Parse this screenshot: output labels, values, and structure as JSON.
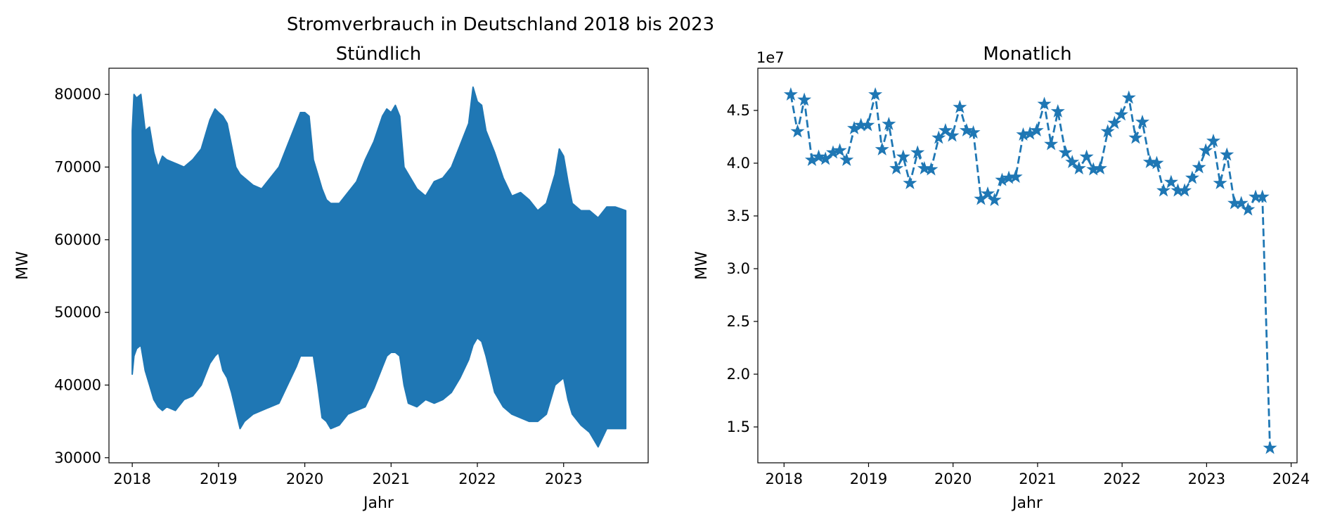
{
  "suptitle": "Stromverbrauch in Deutschland 2018 bis 2023",
  "colors": {
    "series": "#1f77b4",
    "axis": "#000000",
    "background": "#ffffff"
  },
  "chart_data": [
    {
      "type": "area",
      "title": "Stündlich",
      "xlabel": "Jahr",
      "ylabel": "MW",
      "xlim": [
        2017.73,
        2023.98
      ],
      "ylim": [
        29300,
        83600
      ],
      "xticks": [
        2018,
        2019,
        2020,
        2021,
        2022,
        2023
      ],
      "xticklabels": [
        "2018",
        "2019",
        "2020",
        "2021",
        "2022",
        "2023"
      ],
      "yticks": [
        30000,
        40000,
        50000,
        60000,
        70000,
        80000
      ],
      "yticklabels": [
        "30000",
        "40000",
        "50000",
        "60000",
        "70000",
        "80000"
      ],
      "grid": false,
      "series": [
        {
          "style": "dense hourly band (upper/lower envelope)",
          "x": [
            2018.0,
            2018.02,
            2018.05,
            2018.1,
            2018.15,
            2018.2,
            2018.25,
            2018.3,
            2018.35,
            2018.4,
            2018.5,
            2018.6,
            2018.7,
            2018.8,
            2018.9,
            2018.96,
            2019.0,
            2019.05,
            2019.1,
            2019.15,
            2019.2,
            2019.25,
            2019.3,
            2019.4,
            2019.5,
            2019.6,
            2019.7,
            2019.8,
            2019.9,
            2019.95,
            2020.0,
            2020.05,
            2020.1,
            2020.15,
            2020.2,
            2020.25,
            2020.3,
            2020.4,
            2020.5,
            2020.6,
            2020.7,
            2020.8,
            2020.9,
            2020.95,
            2021.0,
            2021.05,
            2021.1,
            2021.15,
            2021.2,
            2021.3,
            2021.4,
            2021.5,
            2021.6,
            2021.7,
            2021.8,
            2021.9,
            2021.95,
            2022.0,
            2022.05,
            2022.1,
            2022.2,
            2022.3,
            2022.4,
            2022.5,
            2022.6,
            2022.7,
            2022.8,
            2022.9,
            2022.95,
            2023.0,
            2023.05,
            2023.1,
            2023.2,
            2023.3,
            2023.4,
            2023.5,
            2023.6,
            2023.72
          ],
          "upper": [
            75000,
            80000,
            79500,
            80000,
            75000,
            75500,
            72000,
            70000,
            71500,
            71000,
            70500,
            70000,
            71000,
            72500,
            76500,
            78000,
            77500,
            77000,
            76000,
            73000,
            70000,
            69000,
            68500,
            67500,
            67000,
            68500,
            70000,
            73000,
            76000,
            77500,
            77500,
            77000,
            71000,
            69000,
            67000,
            65500,
            65000,
            65000,
            66500,
            68000,
            71000,
            73500,
            77000,
            78000,
            77500,
            78500,
            77000,
            70000,
            69000,
            67000,
            66000,
            68000,
            68500,
            70000,
            73000,
            76000,
            81000,
            79000,
            78500,
            75000,
            72000,
            68500,
            66000,
            66500,
            65500,
            64000,
            65000,
            69000,
            72500,
            71500,
            68000,
            65000,
            64000,
            64000,
            63000,
            64500,
            64500,
            64000
          ],
          "lower": [
            41500,
            44000,
            45000,
            45500,
            42000,
            40000,
            38000,
            37000,
            36500,
            37000,
            36500,
            38000,
            38500,
            40000,
            43000,
            44000,
            44500,
            42000,
            41000,
            39000,
            36500,
            34000,
            35000,
            36000,
            36500,
            37000,
            37500,
            40000,
            42500,
            44000,
            44000,
            44000,
            44000,
            40000,
            35500,
            35000,
            34000,
            34500,
            36000,
            36500,
            37000,
            39500,
            42500,
            44000,
            44500,
            44500,
            44000,
            40000,
            37500,
            37000,
            38000,
            37500,
            38000,
            39000,
            41000,
            43500,
            45500,
            46500,
            46000,
            44000,
            39000,
            37000,
            36000,
            35500,
            35000,
            35000,
            36000,
            40000,
            40500,
            41000,
            38000,
            36000,
            34500,
            33500,
            31500,
            34000,
            34000,
            34000
          ]
        }
      ]
    },
    {
      "type": "line",
      "title": "Monatlich",
      "xlabel": "Jahr",
      "ylabel": "MW",
      "offset_text": "1e7",
      "xlim": [
        2017.69,
        2024.07
      ],
      "ylim": [
        1.16,
        4.9
      ],
      "xticks": [
        2018,
        2019,
        2020,
        2021,
        2022,
        2023,
        2024
      ],
      "xticklabels": [
        "2018",
        "2019",
        "2020",
        "2021",
        "2022",
        "2023",
        "2024"
      ],
      "yticks": [
        1.5,
        2.0,
        2.5,
        3.0,
        3.5,
        4.0,
        4.5
      ],
      "yticklabels": [
        "1.5",
        "2.0",
        "2.5",
        "3.0",
        "3.5",
        "4.0",
        "4.5"
      ],
      "grid": false,
      "series": [
        {
          "style": "dashed line with star markers",
          "x": [
            2018.08,
            2018.16,
            2018.24,
            2018.33,
            2018.41,
            2018.49,
            2018.58,
            2018.66,
            2018.74,
            2018.83,
            2018.91,
            2018.99,
            2019.08,
            2019.16,
            2019.24,
            2019.33,
            2019.41,
            2019.49,
            2019.58,
            2019.66,
            2019.74,
            2019.83,
            2019.91,
            2019.99,
            2020.08,
            2020.16,
            2020.24,
            2020.33,
            2020.41,
            2020.49,
            2020.58,
            2020.66,
            2020.74,
            2020.83,
            2020.91,
            2020.99,
            2021.08,
            2021.16,
            2021.24,
            2021.33,
            2021.41,
            2021.49,
            2021.58,
            2021.66,
            2021.74,
            2021.83,
            2021.91,
            2021.99,
            2022.08,
            2022.16,
            2022.24,
            2022.33,
            2022.41,
            2022.49,
            2022.58,
            2022.66,
            2022.74,
            2022.83,
            2022.91,
            2022.99,
            2023.08,
            2023.16,
            2023.24,
            2023.33,
            2023.41,
            2023.49,
            2023.58,
            2023.66,
            2023.75
          ],
          "y": [
            4.65,
            4.3,
            4.6,
            4.03,
            4.06,
            4.04,
            4.1,
            4.12,
            4.03,
            4.33,
            4.36,
            4.36,
            4.65,
            4.13,
            4.37,
            3.95,
            4.06,
            3.81,
            4.1,
            3.95,
            3.94,
            4.24,
            4.31,
            4.26,
            4.53,
            4.31,
            4.29,
            3.66,
            3.71,
            3.65,
            3.84,
            3.86,
            3.87,
            4.27,
            4.28,
            4.31,
            4.56,
            4.18,
            4.49,
            4.1,
            4.01,
            3.95,
            4.06,
            3.94,
            3.95,
            4.3,
            4.38,
            4.46,
            4.62,
            4.24,
            4.39,
            4.01,
            4.0,
            3.74,
            3.82,
            3.74,
            3.74,
            3.86,
            3.96,
            4.12,
            4.21,
            3.81,
            4.08,
            3.62,
            3.62,
            3.56,
            3.68,
            3.68,
            1.3
          ]
        }
      ]
    }
  ]
}
